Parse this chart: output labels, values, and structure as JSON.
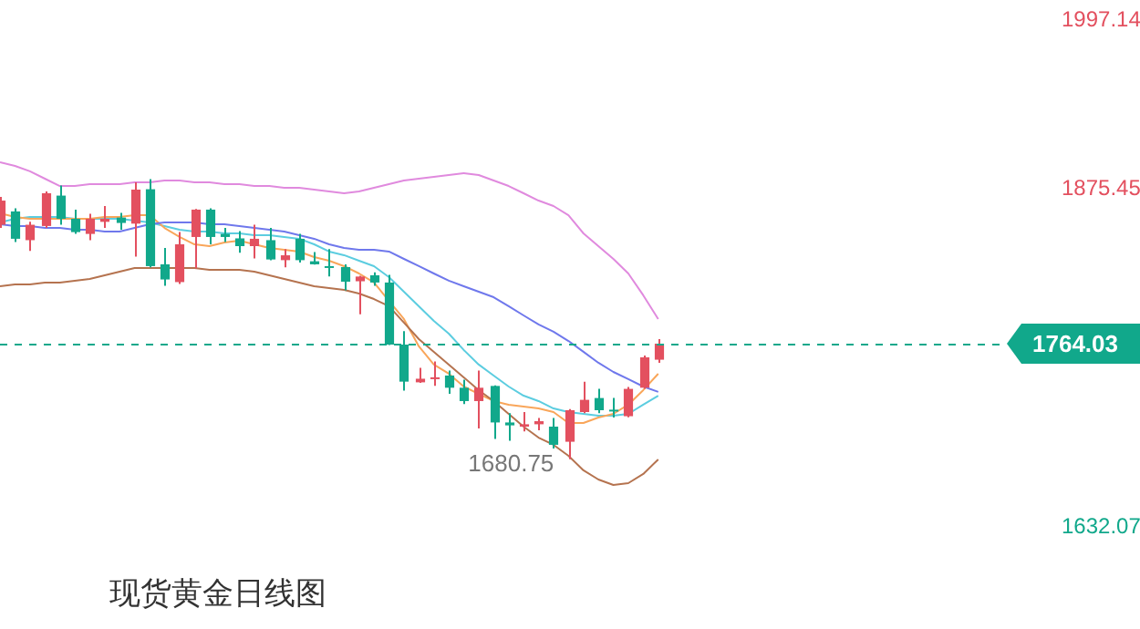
{
  "chart_data": {
    "type": "candlestick",
    "title": "现货黄金日线图",
    "categories": [
      null,
      null,
      null,
      null,
      null,
      null,
      null,
      null,
      null,
      null,
      null,
      null,
      null,
      null,
      null,
      null,
      null,
      null,
      null,
      null,
      null,
      null,
      null,
      null,
      null,
      null,
      null,
      null,
      null,
      null,
      null,
      null,
      null,
      null,
      null,
      null,
      null,
      null,
      null,
      null,
      null,
      null,
      null,
      null,
      null
    ],
    "ylim": [
      1632.07,
      1997.14
    ],
    "yticks": [
      1632.07,
      1875.45,
      1997.14
    ],
    "grid": false,
    "legend": false,
    "ref_lines": [
      {
        "axis": "y",
        "value": 1764.03,
        "label": "1764.03",
        "color": "#11a88b",
        "line_style": "dashed"
      }
    ],
    "annotations": [
      "1680.75"
    ],
    "series": [
      {
        "ohlc": [
          [
            1849.7,
            1869.8,
            1847.4,
            1867.1
          ],
          [
            1859.3,
            1861.5,
            1837.3,
            1839.6
          ],
          [
            1838.6,
            1851.8,
            1830.8,
            1849.7
          ],
          [
            1848.8,
            1873.7,
            1847.4,
            1872.4
          ],
          [
            1870.7,
            1878.0,
            1849.7,
            1854.0
          ],
          [
            1854.0,
            1860.6,
            1843.1,
            1844.4
          ],
          [
            1843.1,
            1857.6,
            1838.6,
            1854.0
          ],
          [
            1851.8,
            1863.2,
            1847.4,
            1854.0
          ],
          [
            1854.9,
            1858.3,
            1846.1,
            1851.0
          ],
          [
            1850.5,
            1880.3,
            1826.8,
            1875.0
          ],
          [
            1875.3,
            1882.5,
            1819.0,
            1819.9
          ],
          [
            1821.2,
            1833.0,
            1805.8,
            1810.3
          ],
          [
            1808.4,
            1844.4,
            1807.0,
            1835.6
          ],
          [
            1840.9,
            1861.0,
            1818.2,
            1860.6
          ],
          [
            1860.6,
            1861.5,
            1835.6,
            1840.9
          ],
          [
            1843.1,
            1847.4,
            1837.3,
            1840.9
          ],
          [
            1839.9,
            1845.2,
            1829.5,
            1834.3
          ],
          [
            1834.3,
            1849.7,
            1825.5,
            1839.6
          ],
          [
            1838.6,
            1847.4,
            1824.2,
            1824.7
          ],
          [
            1824.2,
            1832.1,
            1819.0,
            1827.7
          ],
          [
            1839.6,
            1843.1,
            1822.5,
            1824.2
          ],
          [
            1823.4,
            1830.0,
            1821.0,
            1821.2
          ],
          [
            1819.9,
            1832.1,
            1812.4,
            1819.0
          ],
          [
            1819.2,
            1821.2,
            1802.4,
            1808.7
          ],
          [
            1809.0,
            1813.0,
            1785.3,
            1812.4
          ],
          [
            1813.3,
            1815.5,
            1805.8,
            1808.1
          ],
          [
            1808.1,
            1813.7,
            1763.0,
            1763.4
          ],
          [
            1763.4,
            1773.0,
            1730.2,
            1736.7
          ],
          [
            1736.2,
            1746.7,
            1735.8,
            1738.8
          ],
          [
            1738.8,
            1751.2,
            1733.6,
            1739.8
          ],
          [
            1741.1,
            1744.6,
            1728.0,
            1732.3
          ],
          [
            1732.3,
            1738.1,
            1720.5,
            1722.7
          ],
          [
            1722.7,
            1744.6,
            1703.0,
            1732.3
          ],
          [
            1733.6,
            1734.0,
            1695.5,
            1707.3
          ],
          [
            1707.3,
            1713.9,
            1694.2,
            1705.2
          ],
          [
            1704.3,
            1714.8,
            1700.8,
            1706.0
          ],
          [
            1706.0,
            1710.5,
            1701.7,
            1708.2
          ],
          [
            1704.3,
            1710.5,
            1688.6,
            1691.2
          ],
          [
            1693.4,
            1717.0,
            1680.75,
            1716.1
          ],
          [
            1714.8,
            1736.7,
            1713.9,
            1723.6
          ],
          [
            1724.9,
            1731.5,
            1713.9,
            1716.1
          ],
          [
            1716.5,
            1724.9,
            1710.9,
            1715.2
          ],
          [
            1711.8,
            1732.8,
            1711.0,
            1731.5
          ],
          [
            1732.3,
            1755.5,
            1731.5,
            1754.2
          ],
          [
            1752.5,
            1767.3,
            1750.3,
            1764.03
          ]
        ],
        "colors": [
          "#e3505f",
          "#11a88b",
          "#e3505f",
          "#e3505f",
          "#11a88b",
          "#11a88b",
          "#e3505f",
          "#e3505f",
          "#11a88b",
          "#e3505f",
          "#11a88b",
          "#11a88b",
          "#e3505f",
          "#e3505f",
          "#11a88b",
          "#11a88b",
          "#11a88b",
          "#e3505f",
          "#11a88b",
          "#e3505f",
          "#11a88b",
          "#11a88b",
          "#11a88b",
          "#11a88b",
          "#e3505f",
          "#11a88b",
          "#11a88b",
          "#11a88b",
          "#e3505f",
          "#e3505f",
          "#11a88b",
          "#11a88b",
          "#e3505f",
          "#11a88b",
          "#11a88b",
          "#e3505f",
          "#e3505f",
          "#11a88b",
          "#e3505f",
          "#e3505f",
          "#11a88b",
          "#11a88b",
          "#e3505f",
          "#e3505f",
          "#e3505f"
        ]
      },
      {
        "type": "line",
        "color": "#e08ade",
        "values": [
          1894.7,
          1892.1,
          1888.2,
          1882.9,
          1877.6,
          1877.6,
          1878.9,
          1878.9,
          1878.9,
          1880.3,
          1880.3,
          1881.6,
          1881.6,
          1880.3,
          1880.3,
          1878.9,
          1878.9,
          1877.6,
          1877.6,
          1876.3,
          1876.3,
          1875.0,
          1873.7,
          1872.4,
          1873.7,
          1876.3,
          1878.9,
          1881.6,
          1882.9,
          1884.2,
          1885.5,
          1886.9,
          1885.5,
          1881.6,
          1877.6,
          1872.4,
          1867.1,
          1863.2,
          1856.6,
          1843.5,
          1834.3,
          1825.1,
          1814.6,
          1798.9,
          1781.8
        ]
      },
      {
        "type": "line",
        "color": "#6f78ec",
        "values": [
          1850.1,
          1848.8,
          1848.8,
          1847.4,
          1847.4,
          1846.1,
          1846.1,
          1844.8,
          1844.8,
          1847.4,
          1850.1,
          1851.4,
          1851.4,
          1851.4,
          1850.1,
          1850.1,
          1848.8,
          1847.4,
          1846.1,
          1844.8,
          1842.2,
          1839.6,
          1835.6,
          1833.0,
          1831.7,
          1831.7,
          1830.4,
          1825.1,
          1819.9,
          1814.6,
          1809.4,
          1805.4,
          1801.5,
          1797.5,
          1791.0,
          1784.4,
          1777.9,
          1772.6,
          1766.0,
          1758.2,
          1750.3,
          1743.7,
          1738.5,
          1733.2,
          1729.3
        ]
      },
      {
        "type": "line",
        "color": "#b5734f",
        "values": [
          1805.4,
          1806.7,
          1806.7,
          1808.1,
          1808.1,
          1809.4,
          1810.7,
          1813.3,
          1815.9,
          1818.6,
          1818.6,
          1818.6,
          1818.6,
          1818.6,
          1817.2,
          1817.2,
          1817.2,
          1815.9,
          1813.3,
          1810.7,
          1808.1,
          1805.4,
          1804.1,
          1802.8,
          1800.2,
          1796.2,
          1791.0,
          1779.2,
          1767.3,
          1758.2,
          1749.0,
          1739.8,
          1730.6,
          1722.7,
          1713.5,
          1704.3,
          1696.4,
          1691.2,
          1683.3,
          1672.8,
          1666.2,
          1662.3,
          1663.6,
          1670.2,
          1680.7
        ]
      },
      {
        "type": "line",
        "color": "#f9a65a",
        "values": [
          1858.0,
          1855.3,
          1854.0,
          1854.0,
          1854.0,
          1854.0,
          1854.0,
          1855.3,
          1855.3,
          1856.6,
          1856.6,
          1847.4,
          1840.9,
          1835.6,
          1834.3,
          1836.9,
          1838.3,
          1835.6,
          1833.0,
          1831.7,
          1830.4,
          1826.4,
          1823.8,
          1819.9,
          1814.6,
          1808.1,
          1794.9,
          1781.8,
          1762.1,
          1749.0,
          1742.4,
          1733.2,
          1727.9,
          1722.7,
          1720.1,
          1718.8,
          1717.4,
          1714.8,
          1706.9,
          1706.9,
          1710.9,
          1713.5,
          1720.1,
          1730.6,
          1742.4
        ]
      },
      {
        "type": "line",
        "color": "#5ccde0",
        "values": [
          1851.4,
          1854.0,
          1855.3,
          1855.3,
          1855.3,
          1854.0,
          1854.0,
          1854.0,
          1854.0,
          1852.7,
          1851.4,
          1848.8,
          1846.1,
          1844.8,
          1844.8,
          1843.5,
          1843.5,
          1842.2,
          1842.2,
          1840.9,
          1839.6,
          1835.6,
          1830.4,
          1827.8,
          1823.8,
          1819.9,
          1812.0,
          1801.5,
          1791.0,
          1780.5,
          1771.3,
          1759.5,
          1749.0,
          1741.1,
          1733.2,
          1726.6,
          1722.7,
          1717.4,
          1714.8,
          1713.5,
          1712.2,
          1712.2,
          1713.5,
          1720.1,
          1726.6
        ]
      }
    ]
  }
}
